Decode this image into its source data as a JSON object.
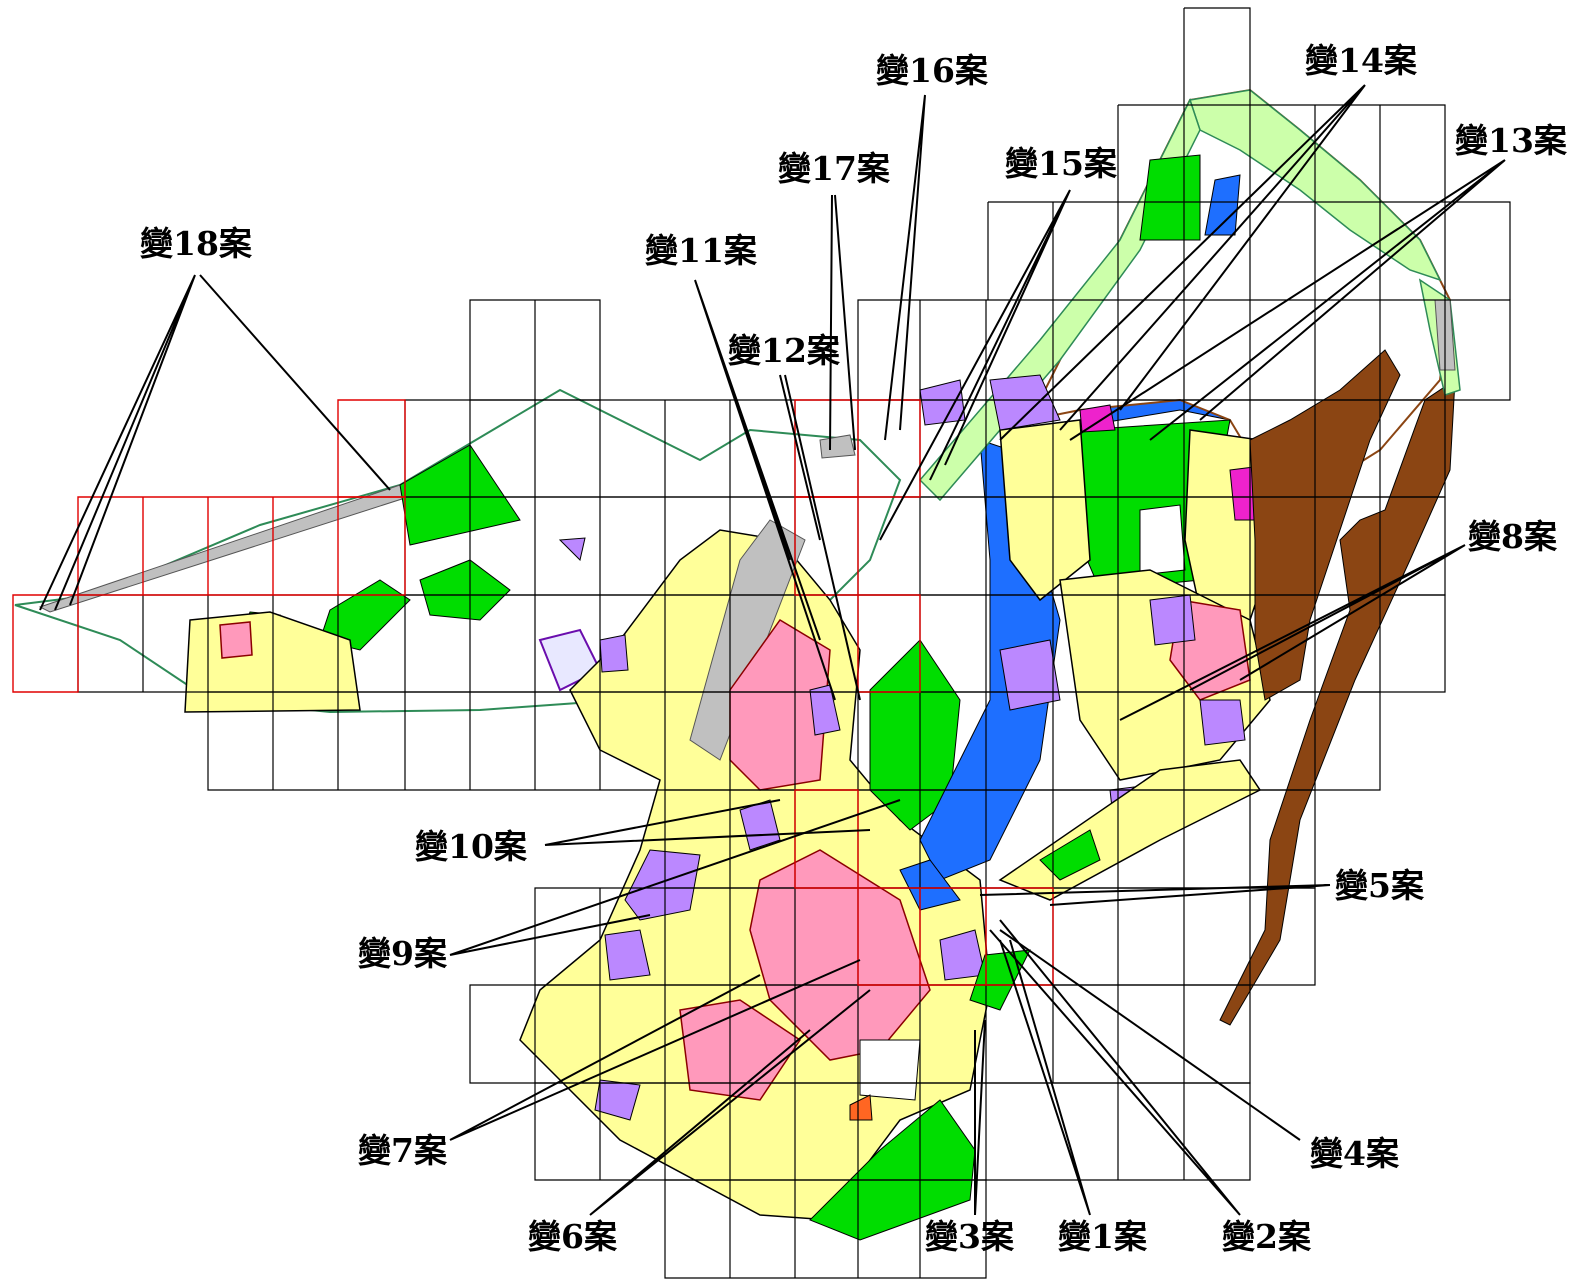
{
  "map": {
    "case_labels": [
      {
        "id": "c18",
        "text": "變18案"
      },
      {
        "id": "c17",
        "text": "變17案"
      },
      {
        "id": "c16",
        "text": "變16案"
      },
      {
        "id": "c15",
        "text": "變15案"
      },
      {
        "id": "c14",
        "text": "變14案"
      },
      {
        "id": "c13",
        "text": "變13案"
      },
      {
        "id": "c12",
        "text": "變12案"
      },
      {
        "id": "c11",
        "text": "變11案"
      },
      {
        "id": "c10",
        "text": "變10案"
      },
      {
        "id": "c9",
        "text": "變9案"
      },
      {
        "id": "c8",
        "text": "變8案"
      },
      {
        "id": "c7",
        "text": "變7案"
      },
      {
        "id": "c6",
        "text": "變6案"
      },
      {
        "id": "c5",
        "text": "變5案"
      },
      {
        "id": "c4",
        "text": "變4案"
      },
      {
        "id": "c3",
        "text": "變3案"
      },
      {
        "id": "c2",
        "text": "變2案"
      },
      {
        "id": "c1",
        "text": "變1案"
      }
    ],
    "zone_colors": {
      "residential": "#ffff99",
      "commercial": "#ff99bb",
      "park_green": "#00dd00",
      "school": "#bb88ff",
      "public_facility": "#1e6fff",
      "industrial": "#8b4513",
      "road": "#c0c0c0",
      "light_green_conservation": "#ccffaa",
      "grid_normal": "#000000",
      "grid_highlight": "#e00000"
    }
  }
}
